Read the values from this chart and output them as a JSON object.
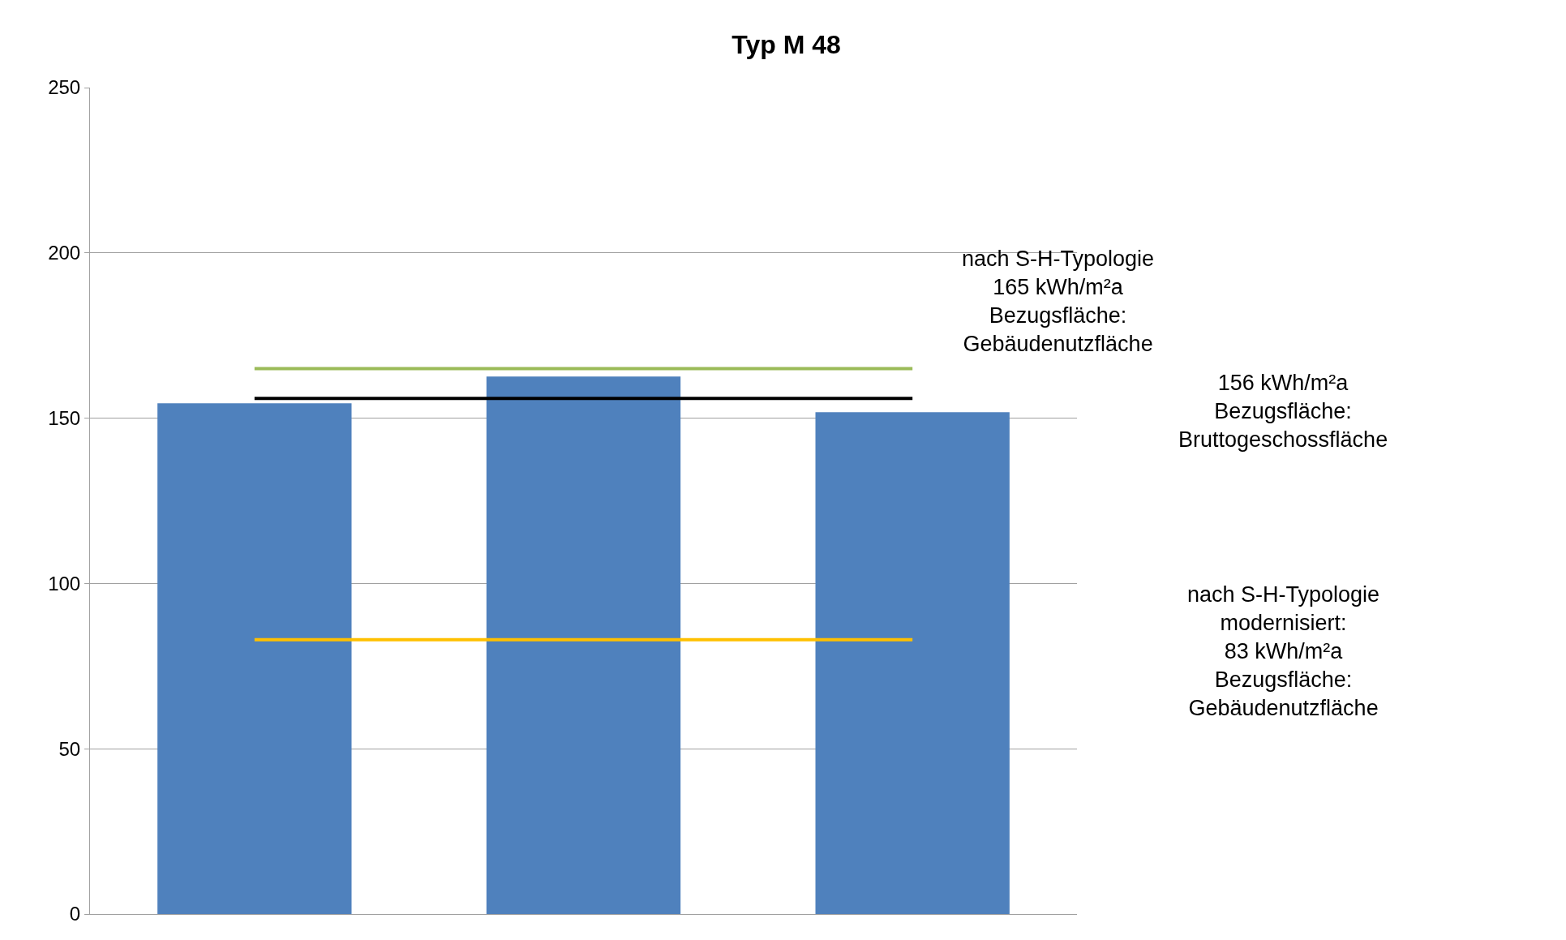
{
  "chart_data": {
    "type": "bar",
    "title": "Typ M 48",
    "categories": [
      null,
      null,
      null
    ],
    "values": [
      154.5,
      162.6,
      151.8
    ],
    "color": "#4f81bd",
    "ylim": [
      0,
      250
    ],
    "yticks": [
      0,
      50,
      100,
      150,
      200,
      250
    ],
    "grid": "y",
    "ref_lines": [
      {
        "axis": "y",
        "value": 165,
        "color": "#9bbb59"
      },
      {
        "axis": "y",
        "value": 156,
        "color": "#000000"
      },
      {
        "axis": "y",
        "value": 83,
        "color": "#ffc000"
      }
    ],
    "annotations": [
      "nach S-H-Typologie\n165 kWh/m²a\nBezugsfläche:\nGebäudenutzfläche",
      "156 kWh/m²a\nBezugsfläche:\nBruttogeschossfläche",
      "nach S-H-Typologie\nmodernisiert:\n83 kWh/m²a\nBezugsfläche:\nGebäudenutzfläche"
    ]
  }
}
